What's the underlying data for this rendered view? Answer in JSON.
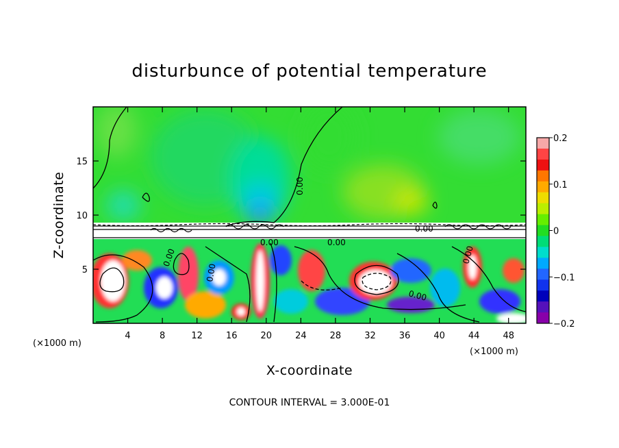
{
  "chart_data": {
    "type": "heatmap",
    "title": "disturbunce of potential temperature",
    "xlabel": "X-coordinate",
    "ylabel": "Z-coordinate",
    "x_unit": "(×1000 m)",
    "xlim": [
      0,
      50
    ],
    "ylim": [
      0,
      20
    ],
    "x_ticks": [
      4,
      8,
      12,
      16,
      20,
      24,
      28,
      32,
      36,
      40,
      44,
      48
    ],
    "y_ticks": [
      5,
      10,
      15
    ],
    "colorbar": {
      "range": [
        -0.2,
        0.2
      ],
      "tick_labels": [
        "0.2",
        "0.1",
        "0",
        "−0.1",
        "−0.2"
      ],
      "tick_values": [
        0.2,
        0.1,
        0,
        -0.1,
        -0.2
      ]
    },
    "contour_labels": [
      "0.00",
      "0.00",
      "0.00",
      "0.00",
      "0.00",
      "0.00",
      "0.00",
      "0.00"
    ],
    "footer": "CONTOUR INTERVAL = 3.000E-01",
    "grid": false
  }
}
